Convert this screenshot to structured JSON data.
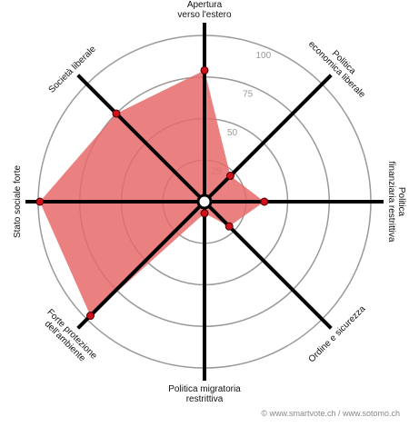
{
  "chart_data": {
    "type": "radar",
    "axes": [
      [
        "Apertura",
        "verso l'estero"
      ],
      [
        "Politica",
        "economica liberale"
      ],
      [
        "Politica",
        "finanziaria restrittiva"
      ],
      [
        "Ordine e sicurezza"
      ],
      [
        "Politica migratoria",
        "restrittiva"
      ],
      [
        "Forte protezione",
        "dell'ambiente"
      ],
      [
        "Stato sociale forte"
      ],
      [
        "Società liberale"
      ]
    ],
    "values": [
      79,
      22,
      36,
      21,
      7,
      97,
      99,
      75
    ],
    "rlim": [
      0,
      100
    ],
    "rticks": [
      25,
      50,
      75,
      100
    ],
    "fill_color": "#e86a6a",
    "point_color": "#d0111b",
    "credit": "© www.smartvote.ch / www.sotomo.ch"
  }
}
